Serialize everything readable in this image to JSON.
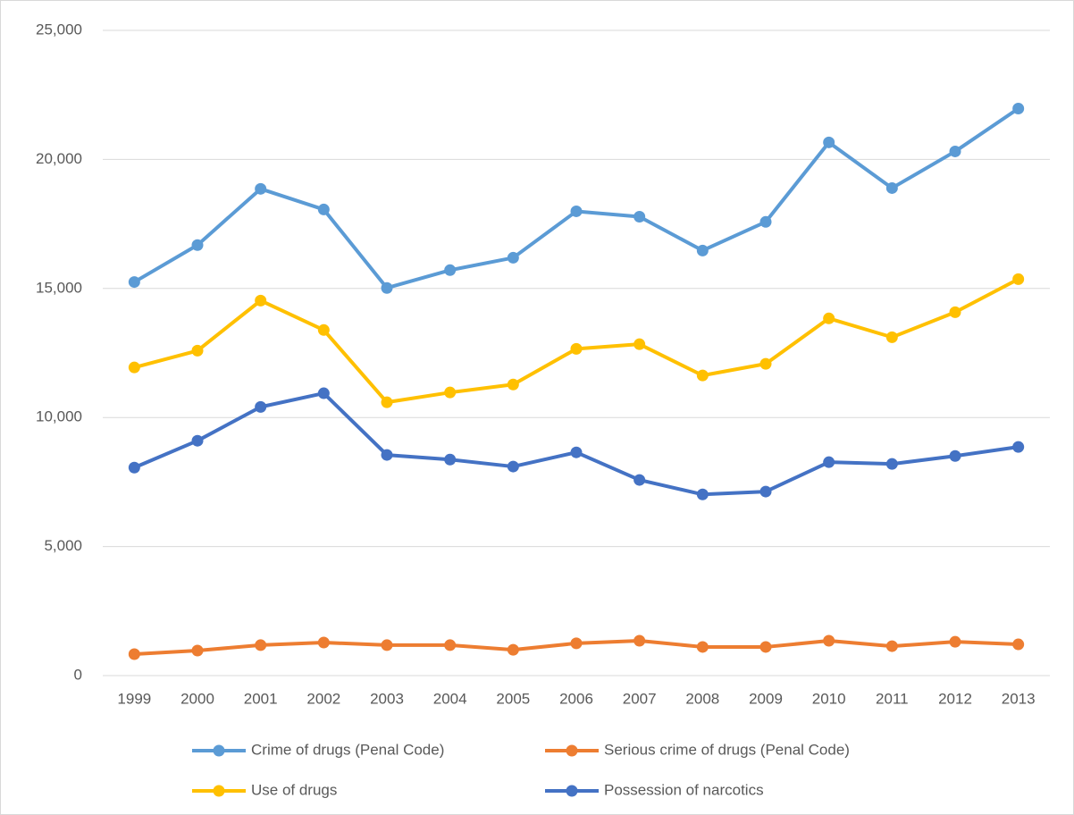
{
  "chart_data": {
    "type": "line",
    "categories": [
      "1999",
      "2000",
      "2001",
      "2002",
      "2003",
      "2004",
      "2005",
      "2006",
      "2007",
      "2008",
      "2009",
      "2010",
      "2011",
      "2012",
      "2013"
    ],
    "series": [
      {
        "name": "Crime of drugs (Penal Code)",
        "color": "#5b9bd5",
        "values": [
          15250,
          16680,
          18860,
          18060,
          15020,
          15710,
          16190,
          17990,
          17780,
          16470,
          17580,
          20660,
          18890,
          20310,
          21970
        ]
      },
      {
        "name": "Serious crime of drugs (Penal Code)",
        "color": "#ed7d31",
        "values": [
          830,
          970,
          1180,
          1280,
          1180,
          1180,
          1000,
          1250,
          1350,
          1110,
          1110,
          1350,
          1140,
          1310,
          1210
        ]
      },
      {
        "name": "Use of drugs",
        "color": "#ffc000",
        "values": [
          11940,
          12590,
          14530,
          13390,
          10590,
          10970,
          11280,
          12660,
          12840,
          11630,
          12080,
          13840,
          13110,
          14080,
          15360
        ]
      },
      {
        "name": "Possession of narcotics",
        "color": "#4472c4",
        "values": [
          8060,
          9100,
          10410,
          10940,
          8550,
          8370,
          8100,
          8650,
          7580,
          7020,
          7130,
          8270,
          8200,
          8510,
          8860
        ]
      }
    ],
    "ylim": [
      0,
      25000
    ],
    "yticks": [
      {
        "value": 0,
        "label": "0"
      },
      {
        "value": 5000,
        "label": "5,000"
      },
      {
        "value": 10000,
        "label": "10,000"
      },
      {
        "value": 15000,
        "label": "15,000"
      },
      {
        "value": 20000,
        "label": "20,000"
      },
      {
        "value": 25000,
        "label": "25,000"
      }
    ],
    "grid": true
  }
}
